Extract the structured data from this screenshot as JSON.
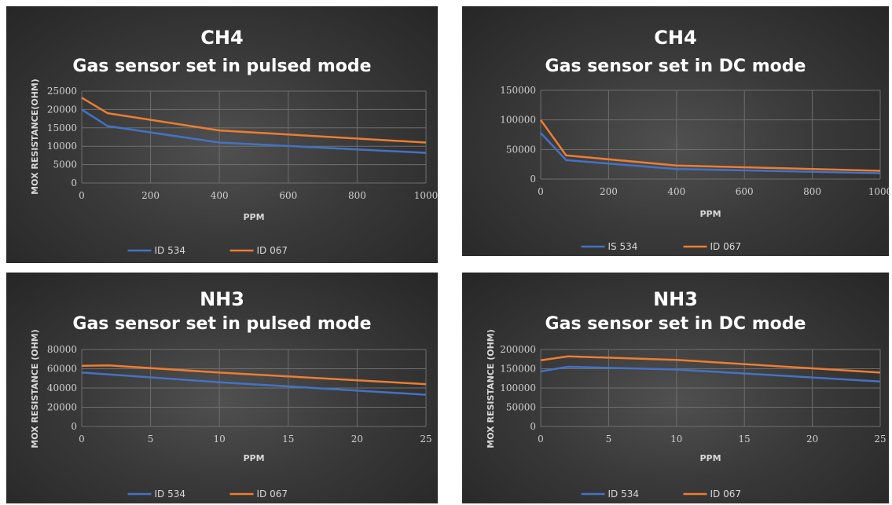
{
  "colors": {
    "series_blue": "#4472C4",
    "series_orange": "#ED7D31",
    "background": "#333333",
    "text": "#ffffff"
  },
  "chart_data": [
    {
      "type": "line",
      "title": "CH4",
      "subtitle": "Gas sensor set in pulsed mode",
      "xlabel": "PPM",
      "ylabel": "MOX RESISTANCE(OHM)",
      "xlim": [
        0,
        1000
      ],
      "ylim": [
        0,
        25000
      ],
      "xticks": [
        0,
        200,
        400,
        600,
        800,
        1000
      ],
      "yticks": [
        0,
        5000,
        10000,
        15000,
        20000,
        25000
      ],
      "grid": true,
      "legend": "bottom",
      "series": [
        {
          "name": "ID 534",
          "color": "#4472C4",
          "x": [
            0,
            75,
            400,
            1000
          ],
          "y": [
            20000,
            15500,
            11000,
            8200
          ]
        },
        {
          "name": "ID 067",
          "color": "#ED7D31",
          "x": [
            0,
            75,
            400,
            1000
          ],
          "y": [
            23200,
            19000,
            14300,
            11000
          ]
        }
      ]
    },
    {
      "type": "line",
      "title": "CH4",
      "subtitle": "Gas sensor set in DC mode",
      "xlabel": "PPM",
      "ylabel": "",
      "xlim": [
        0,
        1000
      ],
      "ylim": [
        0,
        150000
      ],
      "xticks": [
        0,
        200,
        400,
        600,
        800,
        1000
      ],
      "yticks": [
        0,
        50000,
        100000,
        150000
      ],
      "grid": true,
      "legend": "bottom",
      "series": [
        {
          "name": "IS 534",
          "color": "#4472C4",
          "x": [
            0,
            75,
            400,
            1000
          ],
          "y": [
            78000,
            32000,
            17000,
            10000
          ]
        },
        {
          "name": "ID 067",
          "color": "#ED7D31",
          "x": [
            0,
            75,
            400,
            1000
          ],
          "y": [
            100000,
            40000,
            23000,
            14000
          ]
        }
      ]
    },
    {
      "type": "line",
      "title": "NH3",
      "subtitle": "Gas sensor set in  pulsed mode",
      "xlabel": "PPM",
      "ylabel": "MOX RESISTANCE (OHM)",
      "xlim": [
        0,
        25
      ],
      "ylim": [
        0,
        80000
      ],
      "xticks": [
        0,
        5,
        10,
        15,
        20,
        25
      ],
      "yticks": [
        0,
        20000,
        40000,
        60000,
        80000
      ],
      "grid": true,
      "legend": "bottom",
      "series": [
        {
          "name": "ID 534",
          "color": "#4472C4",
          "x": [
            0,
            2,
            10,
            25
          ],
          "y": [
            56000,
            54000,
            46000,
            33000
          ]
        },
        {
          "name": "ID 067",
          "color": "#ED7D31",
          "x": [
            0,
            2,
            10,
            25
          ],
          "y": [
            63000,
            63500,
            56000,
            44000
          ]
        }
      ]
    },
    {
      "type": "line",
      "title": "NH3",
      "subtitle": "Gas sensor set in DC mode",
      "xlabel": "PPM",
      "ylabel": "MOX RESISTANCE (OHM)",
      "xlim": [
        0,
        25
      ],
      "ylim": [
        0,
        200000
      ],
      "xticks": [
        0,
        5,
        10,
        15,
        20,
        25
      ],
      "yticks": [
        0,
        50000,
        100000,
        150000,
        200000
      ],
      "grid": true,
      "legend": "bottom",
      "series": [
        {
          "name": "ID 534",
          "color": "#4472C4",
          "x": [
            0,
            2,
            10,
            25
          ],
          "y": [
            143000,
            155000,
            148000,
            117000
          ]
        },
        {
          "name": "ID 067",
          "color": "#ED7D31",
          "x": [
            0,
            2,
            10,
            25
          ],
          "y": [
            172000,
            182000,
            173000,
            140000
          ]
        }
      ]
    }
  ]
}
